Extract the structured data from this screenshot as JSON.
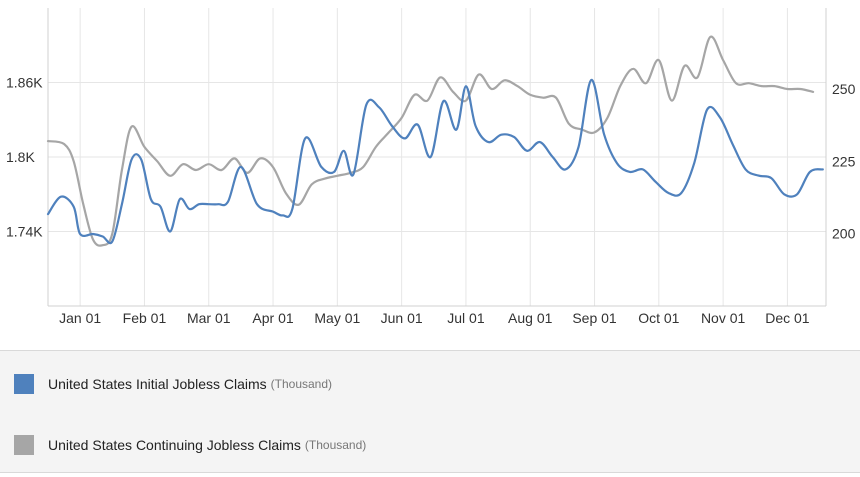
{
  "chart_data": {
    "type": "line",
    "x_ticks": [
      "Jan 01",
      "Feb 01",
      "Mar 01",
      "Apr 01",
      "May 01",
      "Jun 01",
      "Jul 01",
      "Aug 01",
      "Sep 01",
      "Oct 01",
      "Nov 01",
      "Dec 01"
    ],
    "left_axis": {
      "ticks": [
        "1.74K",
        "1.8K",
        "1.86K"
      ],
      "tick_values": [
        1740,
        1800,
        1860
      ],
      "range": [
        1680,
        1920
      ]
    },
    "right_axis": {
      "ticks": [
        "200",
        "225",
        "250"
      ],
      "tick_values": [
        200,
        225,
        250
      ],
      "range": [
        175,
        278
      ]
    },
    "grid": true,
    "legend_position": "bottom",
    "x_range": [
      -0.5,
      11.6
    ],
    "series": [
      {
        "name": "United States Initial Jobless Claims",
        "unit": "(Thousand)",
        "axis": "left",
        "color": "#4f81bd",
        "x": [
          -0.5,
          -0.3,
          -0.1,
          0.0,
          0.2,
          0.35,
          0.5,
          0.65,
          0.8,
          0.95,
          1.1,
          1.25,
          1.4,
          1.55,
          1.7,
          1.85,
          2.0,
          2.15,
          2.3,
          2.5,
          2.75,
          3.0,
          3.15,
          3.3,
          3.5,
          3.75,
          3.95,
          4.1,
          4.25,
          4.45,
          4.65,
          4.85,
          5.05,
          5.25,
          5.45,
          5.65,
          5.85,
          6.0,
          6.15,
          6.35,
          6.55,
          6.75,
          6.95,
          7.15,
          7.35,
          7.55,
          7.75,
          7.95,
          8.15,
          8.35,
          8.55,
          8.75,
          8.95,
          9.15,
          9.35,
          9.55,
          9.75,
          9.95,
          10.15,
          10.35,
          10.55,
          10.75,
          10.95,
          11.15,
          11.35,
          11.55
        ],
        "values": [
          1754,
          1768,
          1760,
          1738,
          1738,
          1736,
          1732,
          1762,
          1798,
          1798,
          1766,
          1760,
          1740,
          1766,
          1758,
          1762,
          1762,
          1762,
          1764,
          1792,
          1762,
          1756,
          1753,
          1758,
          1815,
          1792,
          1788,
          1805,
          1786,
          1842,
          1840,
          1825,
          1815,
          1826,
          1800,
          1845,
          1822,
          1857,
          1825,
          1812,
          1818,
          1816,
          1805,
          1812,
          1800,
          1790,
          1808,
          1862,
          1818,
          1795,
          1788,
          1790,
          1780,
          1771,
          1771,
          1795,
          1838,
          1832,
          1810,
          1790,
          1785,
          1783,
          1770,
          1770,
          1788,
          1790
        ]
      },
      {
        "name": "United States Continuing Jobless Claims",
        "unit": "(Thousand)",
        "axis": "right",
        "color": "#a6a6a6",
        "x": [
          -0.5,
          -0.25,
          -0.1,
          0.05,
          0.2,
          0.35,
          0.5,
          0.65,
          0.8,
          1.0,
          1.2,
          1.4,
          1.6,
          1.8,
          2.0,
          2.2,
          2.4,
          2.6,
          2.8,
          3.0,
          3.2,
          3.4,
          3.6,
          3.8,
          4.0,
          4.2,
          4.4,
          4.6,
          4.8,
          5.0,
          5.2,
          5.4,
          5.6,
          5.8,
          6.0,
          6.2,
          6.4,
          6.6,
          6.8,
          7.0,
          7.2,
          7.4,
          7.6,
          7.8,
          8.0,
          8.2,
          8.4,
          8.6,
          8.8,
          9.0,
          9.2,
          9.4,
          9.6,
          9.8,
          10.0,
          10.2,
          10.4,
          10.6,
          10.8,
          11.0,
          11.2,
          11.4
        ],
        "values": [
          232,
          231,
          225,
          210,
          198,
          196,
          200,
          222,
          237,
          230,
          225,
          220,
          224,
          222,
          224,
          222,
          226,
          221,
          226,
          223,
          214,
          210,
          217,
          219,
          220,
          221,
          223,
          230,
          235,
          240,
          248,
          246,
          254,
          249,
          246,
          255,
          250,
          253,
          251,
          248,
          247,
          247,
          238,
          236,
          235,
          240,
          251,
          257,
          252,
          260,
          246,
          258,
          254,
          268,
          260,
          252,
          252,
          251,
          251,
          250,
          250,
          249
        ]
      }
    ]
  },
  "legend": {
    "items": [
      {
        "name": "United States Initial Jobless Claims",
        "unit": "(Thousand)",
        "color": "#4f81bd"
      },
      {
        "name": "United States Continuing Jobless Claims",
        "unit": "(Thousand)",
        "color": "#a6a6a6"
      }
    ]
  }
}
